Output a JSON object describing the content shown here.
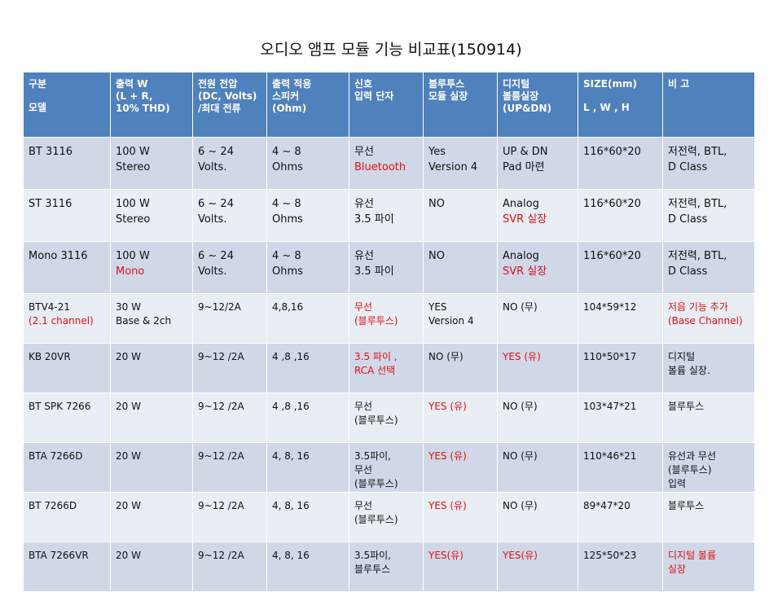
{
  "title": "오디오 앰프 모듈 기능 비교표(150914)",
  "headers": [
    {
      "lines": [
        "구분",
        "",
        "모델"
      ]
    },
    {
      "lines": [
        "출력 W",
        "(L + R,",
        "10% THD)"
      ]
    },
    {
      "lines": [
        "전원 전압",
        "(DC, Volts)",
        "/최대 전류"
      ]
    },
    {
      "lines": [
        "출력 적용",
        "스피커",
        "(Ohm)"
      ]
    },
    {
      "lines": [
        "신호",
        "입력 단자"
      ]
    },
    {
      "lines": [
        "블루투스",
        "모듈 실장"
      ]
    },
    {
      "lines": [
        "디지털",
        "볼륨실장",
        "(UP&DN)"
      ]
    },
    {
      "lines": [
        "SIZE(mm)",
        "",
        "L , W  , H"
      ]
    },
    {
      "lines": [
        "비 고"
      ]
    }
  ],
  "rows": [
    {
      "cells": [
        {
          "lines": [
            {
              "t": "BT 3116"
            }
          ]
        },
        {
          "lines": [
            {
              "t": "100 W"
            },
            {
              "t": "Stereo"
            }
          ]
        },
        {
          "lines": [
            {
              "t": "6 ~ 24"
            },
            {
              "t": "Volts."
            }
          ]
        },
        {
          "lines": [
            {
              "t": "4 ~ 8"
            },
            {
              "t": "Ohms"
            }
          ]
        },
        {
          "lines": [
            {
              "t": "무선"
            },
            {
              "t": "Bluetooth",
              "red": true
            }
          ]
        },
        {
          "lines": [
            {
              "t": "Yes"
            },
            {
              "t": "Version 4"
            }
          ]
        },
        {
          "lines": [
            {
              "t": "UP & DN"
            },
            {
              "t": "Pad 마련"
            }
          ]
        },
        {
          "lines": [
            {
              "t": "116*60*20"
            }
          ]
        },
        {
          "lines": [
            {
              "t": "저전력, BTL,"
            },
            {
              "t": "D Class"
            }
          ]
        }
      ]
    },
    {
      "cells": [
        {
          "lines": [
            {
              "t": "ST 3116"
            }
          ]
        },
        {
          "lines": [
            {
              "t": "100 W"
            },
            {
              "t": "Stereo"
            }
          ]
        },
        {
          "lines": [
            {
              "t": "6 ~ 24"
            },
            {
              "t": "Volts."
            }
          ]
        },
        {
          "lines": [
            {
              "t": "4 ~ 8"
            },
            {
              "t": "Ohms"
            }
          ]
        },
        {
          "lines": [
            {
              "t": "유선"
            },
            {
              "t": "3.5 파이"
            }
          ]
        },
        {
          "lines": [
            {
              "t": "NO"
            }
          ]
        },
        {
          "lines": [
            {
              "t": "Analog"
            },
            {
              "t": "SVR 실장",
              "red": true
            }
          ]
        },
        {
          "lines": [
            {
              "t": "116*60*20"
            }
          ]
        },
        {
          "lines": [
            {
              "t": "저전력, BTL,"
            },
            {
              "t": "D Class"
            }
          ]
        }
      ]
    },
    {
      "cells": [
        {
          "lines": [
            {
              "t": "Mono 3116"
            }
          ]
        },
        {
          "lines": [
            {
              "t": "100 W"
            },
            {
              "t": "Mono",
              "red": true
            }
          ]
        },
        {
          "lines": [
            {
              "t": "6 ~ 24"
            },
            {
              "t": "Volts."
            }
          ]
        },
        {
          "lines": [
            {
              "t": "4 ~ 8"
            },
            {
              "t": "Ohms"
            }
          ]
        },
        {
          "lines": [
            {
              "t": "유선"
            },
            {
              "t": "3.5 파이"
            }
          ]
        },
        {
          "lines": [
            {
              "t": "NO"
            }
          ]
        },
        {
          "lines": [
            {
              "t": "Analog"
            },
            {
              "t": "SVR 실장",
              "red": true
            }
          ]
        },
        {
          "lines": [
            {
              "t": "116*60*20"
            }
          ]
        },
        {
          "lines": [
            {
              "t": "저전력, BTL,"
            },
            {
              "t": "D Class"
            }
          ]
        }
      ]
    },
    {
      "cells": [
        {
          "lines": [
            {
              "t": "BTV4-21"
            },
            {
              "t": "(2.1 channel)",
              "red": true
            }
          ]
        },
        {
          "lines": [
            {
              "t": "30 W"
            },
            {
              "t": "Base & 2ch"
            }
          ]
        },
        {
          "lines": [
            {
              "t": "9~12/2A"
            }
          ]
        },
        {
          "lines": [
            {
              "t": "4,8,16"
            }
          ]
        },
        {
          "lines": [
            {
              "t": "무선",
              "red": true
            },
            {
              "t": "(블루투스)",
              "red": true
            }
          ]
        },
        {
          "lines": [
            {
              "t": "YES"
            },
            {
              "t": "Version 4"
            }
          ]
        },
        {
          "lines": [
            {
              "t": "NO (무)"
            }
          ]
        },
        {
          "lines": [
            {
              "t": "104*59*12"
            }
          ]
        },
        {
          "lines": [
            {
              "t": "저음 기능 추가",
              "red": true
            },
            {
              "t": "(Base Channel)",
              "red": true
            }
          ]
        }
      ]
    },
    {
      "cells": [
        {
          "lines": [
            {
              "t": "KB 20VR"
            }
          ]
        },
        {
          "lines": [
            {
              "t": "20 W"
            }
          ]
        },
        {
          "lines": [
            {
              "t": "9~12 /2A"
            }
          ]
        },
        {
          "lines": [
            {
              "t": "4 ,8 ,16"
            }
          ]
        },
        {
          "lines": [
            {
              "t": "3.5 파이 ,",
              "red": true
            },
            {
              "t": "RCA 선택",
              "red": true
            }
          ]
        },
        {
          "lines": [
            {
              "t": "NO (무)"
            }
          ]
        },
        {
          "lines": [
            {
              "t": "YES  (유)",
              "red": true
            }
          ]
        },
        {
          "lines": [
            {
              "t": "110*50*17"
            }
          ]
        },
        {
          "lines": [
            {
              "t": "디지털"
            },
            {
              "t": "볼륨 실장."
            }
          ]
        }
      ]
    },
    {
      "cells": [
        {
          "lines": [
            {
              "t": "BT SPK 7266"
            }
          ]
        },
        {
          "lines": [
            {
              "t": "20 W"
            }
          ]
        },
        {
          "lines": [
            {
              "t": "9~12 /2A"
            }
          ]
        },
        {
          "lines": [
            {
              "t": " 4 ,8 ,16"
            }
          ]
        },
        {
          "lines": [
            {
              "t": "무선"
            },
            {
              "t": "(블루투스)"
            }
          ]
        },
        {
          "lines": [
            {
              "t": "YES (유)",
              "red": true
            }
          ]
        },
        {
          "lines": [
            {
              "t": "NO (무)"
            }
          ]
        },
        {
          "lines": [
            {
              "t": "103*47*21"
            }
          ]
        },
        {
          "lines": [
            {
              "t": "블루투스"
            }
          ]
        }
      ]
    },
    {
      "cells": [
        {
          "lines": [
            {
              "t": "BTA 7266D"
            }
          ]
        },
        {
          "lines": [
            {
              "t": "20 W"
            }
          ]
        },
        {
          "lines": [
            {
              "t": "9~12 /2A"
            }
          ]
        },
        {
          "lines": [
            {
              "t": "4, 8,  16"
            }
          ]
        },
        {
          "lines": [
            {
              "t": "3.5파이,"
            },
            {
              "t": "무선"
            },
            {
              "t": "(블루투스)"
            }
          ]
        },
        {
          "lines": [
            {
              "t": "YES (유)",
              "red": true
            }
          ]
        },
        {
          "lines": [
            {
              "t": "NO (무)"
            }
          ]
        },
        {
          "lines": [
            {
              "t": "110*46*21"
            }
          ]
        },
        {
          "lines": [
            {
              "t": "유선과 무선"
            },
            {
              "t": "(블루투스)"
            },
            {
              "t": "입력"
            }
          ]
        }
      ]
    },
    {
      "cells": [
        {
          "lines": [
            {
              "t": "BT 7266D"
            }
          ]
        },
        {
          "lines": [
            {
              "t": "20 W"
            }
          ]
        },
        {
          "lines": [
            {
              "t": "9~12 /2A"
            }
          ]
        },
        {
          "lines": [
            {
              "t": "4, 8,  16"
            }
          ]
        },
        {
          "lines": [
            {
              "t": "무선"
            },
            {
              "t": "(블루투스)"
            }
          ]
        },
        {
          "lines": [
            {
              "t": "YES (유)",
              "red": true
            }
          ]
        },
        {
          "lines": [
            {
              "t": "NO (무)"
            }
          ]
        },
        {
          "lines": [
            {
              "t": "89*47*20"
            }
          ]
        },
        {
          "lines": [
            {
              "t": "블루투스"
            }
          ]
        }
      ]
    },
    {
      "cells": [
        {
          "lines": [
            {
              "t": "BTA 7266VR"
            }
          ]
        },
        {
          "lines": [
            {
              "t": "20 W"
            }
          ]
        },
        {
          "lines": [
            {
              "t": "9~12 /2A"
            }
          ]
        },
        {
          "lines": [
            {
              "t": "4, 8,  16"
            }
          ]
        },
        {
          "lines": [
            {
              "t": "3.5파이,"
            },
            {
              "t": "블루투스"
            }
          ]
        },
        {
          "lines": [
            {
              "t": "YES(유)",
              "red": true
            }
          ]
        },
        {
          "lines": [
            {
              "t": "YES(유)",
              "red": true
            }
          ]
        },
        {
          "lines": [
            {
              "t": "125*50*23"
            }
          ]
        },
        {
          "lines": [
            {
              "t": "디지털 볼륨",
              "red": true
            },
            {
              "t": "실장",
              "red": true
            }
          ]
        }
      ]
    }
  ]
}
